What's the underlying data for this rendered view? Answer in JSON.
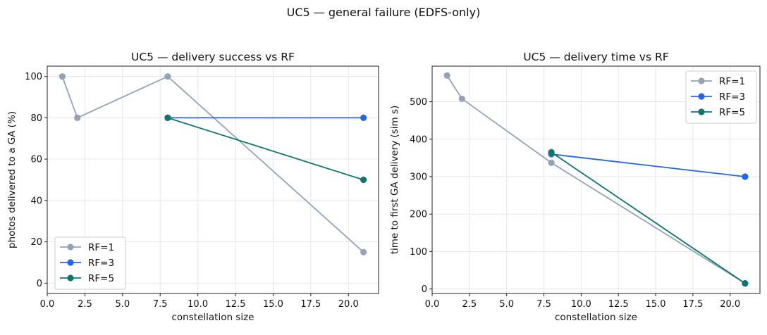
{
  "figure": {
    "suptitle": "UC5 — general failure (EDFS-only)"
  },
  "colors": {
    "rf1": "#94a3b8",
    "rf3": "#2563eb",
    "rf5": "#0f766e"
  },
  "chart_data": [
    {
      "type": "line",
      "title": "UC5 — delivery success vs RF",
      "xlabel": "constellation size",
      "ylabel": "photos delivered to a GA (%)",
      "xlim": [
        0,
        22.0
      ],
      "ylim": [
        -5,
        105
      ],
      "xticks": [
        0.0,
        2.5,
        5.0,
        7.5,
        10.0,
        12.5,
        15.0,
        17.5,
        20.0
      ],
      "xtick_labels": [
        "0.0",
        "2.5",
        "5.0",
        "7.5",
        "10.0",
        "12.5",
        "15.0",
        "17.5",
        "20.0"
      ],
      "yticks": [
        0,
        20,
        40,
        60,
        80,
        100
      ],
      "ytick_labels": [
        "0",
        "20",
        "40",
        "60",
        "80",
        "100"
      ],
      "grid": true,
      "legend": "lower-left",
      "series": [
        {
          "name": "RF=1",
          "color": "#94a3b8",
          "x": [
            1,
            2,
            8,
            21
          ],
          "y": [
            100,
            80,
            100,
            15
          ]
        },
        {
          "name": "RF=3",
          "color": "#2563eb",
          "x": [
            8,
            21
          ],
          "y": [
            80,
            80
          ]
        },
        {
          "name": "RF=5",
          "color": "#0f766e",
          "x": [
            8,
            21
          ],
          "y": [
            80,
            50
          ]
        }
      ]
    },
    {
      "type": "line",
      "title": "UC5 — delivery time vs RF",
      "xlabel": "constellation size",
      "ylabel": "time to first GA delivery (sim s)",
      "xlim": [
        0,
        22.0
      ],
      "ylim": [
        -12,
        595
      ],
      "xticks": [
        0.0,
        2.5,
        5.0,
        7.5,
        10.0,
        12.5,
        15.0,
        17.5,
        20.0
      ],
      "xtick_labels": [
        "0.0",
        "2.5",
        "5.0",
        "7.5",
        "10.0",
        "12.5",
        "15.0",
        "17.5",
        "20.0"
      ],
      "yticks": [
        0,
        100,
        200,
        300,
        400,
        500
      ],
      "ytick_labels": [
        "0",
        "100",
        "200",
        "300",
        "400",
        "500"
      ],
      "grid": true,
      "legend": "upper-right",
      "series": [
        {
          "name": "RF=1",
          "color": "#94a3b8",
          "x": [
            1,
            2,
            8,
            21
          ],
          "y": [
            570,
            508,
            337,
            15
          ]
        },
        {
          "name": "RF=3",
          "color": "#2563eb",
          "x": [
            8,
            21
          ],
          "y": [
            360,
            300
          ]
        },
        {
          "name": "RF=5",
          "color": "#0f766e",
          "x": [
            8,
            21
          ],
          "y": [
            365,
            15
          ]
        }
      ]
    }
  ]
}
